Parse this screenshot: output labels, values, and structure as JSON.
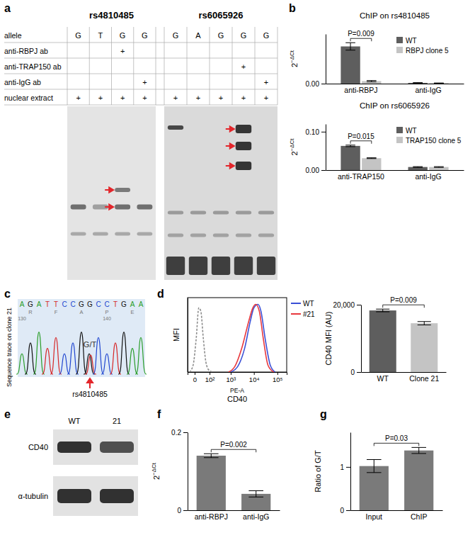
{
  "chart_data": [
    {
      "type": "bar",
      "title": "ChIP on rs4810485",
      "y_label": "2",
      "y_label_sup": "−ΔCt",
      "categories": [
        "anti-RBPJ",
        "anti-IgG"
      ],
      "series": [
        {
          "name": "WT",
          "color": "#5e5e5e",
          "values": [
            0.3,
            0.006
          ],
          "errors": [
            0.03,
            0.002
          ]
        },
        {
          "name": "RBPJ clone 5",
          "color": "#c4c4c4",
          "values": [
            0.02,
            0.004
          ],
          "errors": [
            0.005,
            0.001
          ]
        }
      ],
      "ylim": [
        0,
        0.4
      ],
      "yticks": [
        {
          "value": 0,
          "label": "0.00"
        }
      ],
      "legend": "top-right",
      "annotation": "P=0.009"
    },
    {
      "type": "bar",
      "title": "ChIP on rs6065926",
      "y_label": "2",
      "y_label_sup": "−ΔCt",
      "categories": [
        "anti-TRAP150",
        "anti-IgG"
      ],
      "series": [
        {
          "name": "WT",
          "color": "#5e5e5e",
          "values": [
            0.063,
            0.008
          ],
          "errors": [
            0.002,
            0.001
          ]
        },
        {
          "name": "TRAP150 clone 5",
          "color": "#c4c4c4",
          "values": [
            0.031,
            0.008
          ],
          "errors": [
            0.001,
            0.001
          ]
        }
      ],
      "ylim": [
        0,
        0.12
      ],
      "yticks": [
        {
          "value": 0,
          "label": "0.00"
        },
        {
          "value": 0.1,
          "label": "0.10"
        }
      ],
      "legend": "top-right",
      "annotation": "P=0.015"
    },
    {
      "type": "line",
      "x_label": "CD40",
      "x_sublabel": "PE-A",
      "y_label": "MFI",
      "log": "x",
      "tick_labels": "x",
      "legend": "top-right",
      "xlim": [
        -30,
        250000
      ],
      "xticks": [
        0,
        {
          "value": 100,
          "label": "10²"
        },
        {
          "value": 1000,
          "label": "10³"
        },
        {
          "value": 10000,
          "label": "10⁴"
        },
        {
          "value": 100000,
          "label": "10⁵"
        }
      ],
      "ylim": [
        0,
        110
      ],
      "series": [
        {
          "color": "#8c8c8c",
          "line_style": "dashed",
          "x": [
            -20,
            -5,
            5,
            15,
            25,
            40,
            60,
            90,
            140
          ],
          "values": [
            0,
            10,
            50,
            95,
            90,
            50,
            15,
            3,
            0
          ]
        },
        {
          "name": "WT",
          "color": "#3a4fd6",
          "x": [
            1000,
            2000,
            4000,
            7000,
            10000,
            15000,
            20000,
            30000,
            50000,
            80000
          ],
          "values": [
            0,
            8,
            35,
            75,
            95,
            100,
            90,
            50,
            10,
            0
          ]
        },
        {
          "name": "#21",
          "color": "#e8383d",
          "x": [
            800,
            1500,
            3000,
            6000,
            9000,
            12000,
            17000,
            25000,
            40000,
            70000
          ],
          "values": [
            0,
            8,
            35,
            75,
            95,
            100,
            90,
            50,
            10,
            0
          ]
        }
      ]
    },
    {
      "type": "bar",
      "y_label": "CD40 MFI (AU)",
      "categories": [
        "WT",
        "Clone 21"
      ],
      "values": [
        18300,
        14500
      ],
      "errors": [
        400,
        500
      ],
      "colors": [
        "#5e5e5e",
        "#c4c4c4"
      ],
      "ylim": [
        0,
        20000
      ],
      "yticks": [
        0,
        {
          "value": 20000,
          "label": "20,000"
        }
      ],
      "annotation": "P=0.009"
    },
    {
      "type": "bar",
      "y_label": "2",
      "y_label_sup": "−ΔCt",
      "categories": [
        "anti-RBPJ",
        "anti-IgG"
      ],
      "values": [
        0.14,
        0.042
      ],
      "errors": [
        0.005,
        0.008
      ],
      "color": "#7a7a7a",
      "ylim": [
        0,
        0.2
      ],
      "yticks": [
        0,
        0.2
      ],
      "annotation": "P=0.002"
    },
    {
      "type": "bar",
      "y_label": "Ratio of G/T",
      "categories": [
        "Input",
        "ChIP"
      ],
      "values": [
        1.02,
        1.38
      ],
      "errors": [
        0.15,
        0.07
      ],
      "color": "#7a7a7a",
      "ylim": [
        0,
        1.8
      ],
      "yticks": [
        0,
        1
      ],
      "annotation": "P=0.03"
    }
  ],
  "figure": {
    "panel_labels": [
      "a",
      "b",
      "c",
      "d",
      "e",
      "f",
      "g"
    ],
    "gel_row_labels": [
      "allele",
      "anti-RBPJ ab",
      "anti-TRAP150 ab",
      "anti-IgG ab",
      "nuclear extract"
    ],
    "gels": [
      {
        "title": "rs4810485",
        "columns": [
          [
            "G",
            null,
            null,
            null,
            "+"
          ],
          [
            "T",
            null,
            null,
            null,
            "+"
          ],
          [
            "G",
            "+",
            null,
            null,
            "+"
          ],
          [
            "G",
            null,
            null,
            "+",
            "+"
          ]
        ]
      },
      {
        "title": "rs6065926",
        "columns": [
          [
            "G",
            null,
            null,
            null,
            "+"
          ],
          [
            "A",
            null,
            null,
            null,
            "+"
          ],
          [
            "G",
            null,
            null,
            null,
            "+"
          ],
          [
            "G",
            null,
            "+",
            null,
            "+"
          ],
          [
            "G",
            null,
            null,
            "+",
            "+"
          ]
        ]
      }
    ],
    "sequence_trace": {
      "label": "Sequence trace on clone 21",
      "bases": [
        "A",
        "G",
        "A",
        "T",
        "T",
        "C",
        "C",
        "G",
        "G",
        "C",
        "C",
        "T",
        "G",
        "A",
        "A"
      ],
      "translation": [
        "R",
        "F",
        "A",
        "P",
        "E"
      ],
      "positions": [
        "130",
        "140"
      ],
      "call": "G/T",
      "snp": "rs4810485"
    },
    "blot": {
      "lanes": [
        "WT",
        "21"
      ],
      "bands": [
        "CD40",
        "α-tubulin"
      ]
    }
  }
}
